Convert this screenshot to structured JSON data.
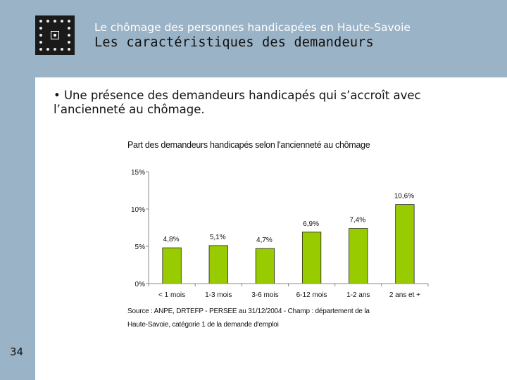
{
  "header": {
    "subtitle": "Le chômage des personnes handicapées en Haute-Savoie",
    "title": "Les caractéristiques des demandeurs"
  },
  "content": {
    "bullet_line1": "• Une présence des demandeurs handicapés qui s’accroît avec",
    "bullet_line2": "l’ancienneté au chômage."
  },
  "source": {
    "line1": "Source : ANPE, DRTEFP - PERSEE au 31/12/2004 - Champ : département de la",
    "line2": "Haute-Savoie, catégorie 1 de la demande d'emploi"
  },
  "page_number": "34",
  "colors": {
    "band": "#9bb3c6",
    "bar_fill": "#99cc00",
    "bar_stroke": "#222222"
  },
  "chart_data": {
    "type": "bar",
    "title": "Part des demandeurs handicapés selon l'ancienneté au chômage",
    "categories": [
      "< 1 mois",
      "1-3 mois",
      "3-6 mois",
      "6-12 mois",
      "1-2 ans",
      "2 ans et +"
    ],
    "values": [
      4.8,
      5.1,
      4.7,
      6.9,
      7.4,
      10.6
    ],
    "value_labels": [
      "4,8%",
      "5,1%",
      "4,7%",
      "6,9%",
      "7,4%",
      "10,6%"
    ],
    "y_ticks": [
      0,
      5,
      10,
      15
    ],
    "y_tick_labels": [
      "0%",
      "5%",
      "10%",
      "15%"
    ],
    "ylim": [
      0,
      15
    ],
    "xlabel": "",
    "ylabel": "",
    "grid": false
  }
}
